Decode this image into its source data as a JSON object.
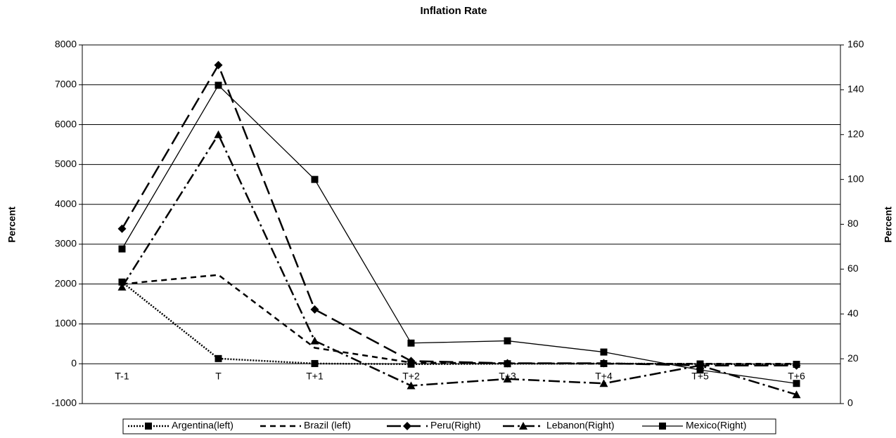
{
  "chart_data": {
    "type": "line",
    "title": "Inflation Rate",
    "categories": [
      "T-1",
      "T",
      "T+1",
      "T+2",
      "T+3",
      "T+4",
      "T+5",
      "T+6"
    ],
    "y_label": "Percent",
    "y2_label": "Percent",
    "ylim": [
      -1000,
      8000
    ],
    "yticks": [
      -1000,
      0,
      1000,
      2000,
      3000,
      4000,
      5000,
      6000,
      7000,
      8000
    ],
    "y2lim": [
      0,
      160
    ],
    "y2ticks": [
      0,
      20,
      40,
      60,
      80,
      100,
      120,
      140,
      160
    ],
    "grid": true,
    "legend": "bottom",
    "series": [
      {
        "name": "Argentina(left)",
        "color": "#000000",
        "dash": "dotted",
        "marker": "square",
        "axis": "y",
        "values": [
          2050,
          130,
          5,
          -10,
          0,
          5,
          -5,
          -15
        ]
      },
      {
        "name": "Brazil (left)",
        "color": "#000000",
        "dash": "dashed",
        "marker": "none",
        "axis": "y",
        "values": [
          2000,
          2230,
          400,
          30,
          10,
          0,
          0,
          0
        ]
      },
      {
        "name": "Peru(Right)",
        "color": "#000000",
        "dash": "longdash",
        "marker": "diamond",
        "axis": "y2",
        "values": [
          78,
          151,
          42,
          19,
          18,
          18,
          17,
          17
        ]
      },
      {
        "name": "Lebanon(Right)",
        "color": "#000000",
        "dash": "dashdot",
        "marker": "triangle",
        "axis": "y2",
        "values": [
          52,
          120,
          28,
          8,
          11,
          9,
          17,
          4
        ]
      },
      {
        "name": "Mexico(Right)",
        "color": "#000000",
        "dash": "solid",
        "marker": "square",
        "axis": "y2",
        "values": [
          69,
          142,
          100,
          27,
          28,
          23,
          15,
          9
        ]
      }
    ]
  }
}
